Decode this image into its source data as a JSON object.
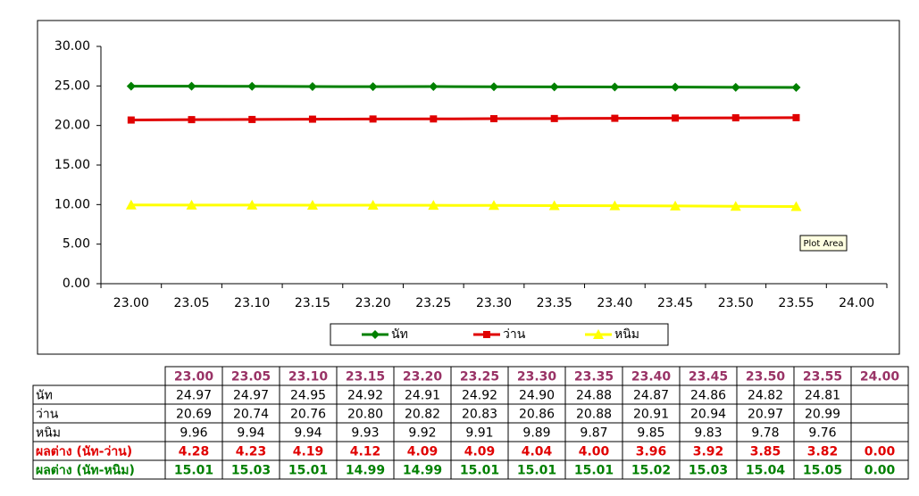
{
  "chart_data": {
    "type": "line",
    "categories": [
      "23.00",
      "23.05",
      "23.10",
      "23.15",
      "23.20",
      "23.25",
      "23.30",
      "23.35",
      "23.40",
      "23.45",
      "23.50",
      "23.55",
      "24.00"
    ],
    "series": [
      {
        "name": "นัท",
        "color": "#008000",
        "marker": "diamond",
        "values": [
          24.97,
          24.97,
          24.95,
          24.92,
          24.91,
          24.92,
          24.9,
          24.88,
          24.87,
          24.86,
          24.82,
          24.81,
          null
        ],
        "value_labels": [
          "24.97",
          "24.97",
          "24.95",
          "24.92",
          "24.91",
          "24.92",
          "24.90",
          "24.88",
          "24.87",
          "24.86",
          "24.82",
          "24.81",
          null
        ]
      },
      {
        "name": "ว่าน",
        "color": "#e00000",
        "marker": "square",
        "values": [
          20.69,
          20.74,
          20.76,
          20.8,
          20.82,
          20.83,
          20.86,
          20.88,
          20.91,
          20.94,
          20.97,
          20.99,
          null
        ],
        "value_labels": [
          "20.69",
          "20.74",
          "20.76",
          "20.80",
          "20.82",
          "20.83",
          "20.86",
          "20.88",
          "20.91",
          "20.94",
          "20.97",
          "20.99",
          null
        ]
      },
      {
        "name": "หนิม",
        "color": "#ffff00",
        "marker": "triangle",
        "values": [
          9.96,
          9.94,
          9.94,
          9.93,
          9.92,
          9.91,
          9.89,
          9.87,
          9.85,
          9.83,
          9.78,
          9.76,
          null
        ],
        "value_labels": [
          "9.96",
          "9.94",
          "9.94",
          "9.93",
          "9.92",
          "9.91",
          "9.89",
          "9.87",
          "9.85",
          "9.83",
          "9.78",
          "9.76",
          null
        ]
      }
    ],
    "ylim": [
      0,
      30
    ],
    "yticks": [
      {
        "value": 0,
        "label": "0.00"
      },
      {
        "value": 5,
        "label": "5.00"
      },
      {
        "value": 10,
        "label": "10.00"
      },
      {
        "value": 15,
        "label": "15.00"
      },
      {
        "value": 20,
        "label": "20.00"
      },
      {
        "value": 25,
        "label": "25.00"
      },
      {
        "value": 30,
        "label": "30.00"
      }
    ],
    "grid": false,
    "legend": "bottom",
    "tooltip": "Plot Area"
  },
  "table": {
    "rows": [
      {
        "label": "ผลต่าง (นัท-ว่าน)",
        "color": "#e00000",
        "cells": [
          "4.28",
          "4.23",
          "4.19",
          "4.12",
          "4.09",
          "4.09",
          "4.04",
          "4.00",
          "3.96",
          "3.92",
          "3.85",
          "3.82",
          "0.00"
        ]
      },
      {
        "label": "ผลต่าง (นัท-หนิม)",
        "color": "#008000",
        "cells": [
          "15.01",
          "15.03",
          "15.01",
          "14.99",
          "14.99",
          "15.01",
          "15.01",
          "15.01",
          "15.02",
          "15.03",
          "15.04",
          "15.05",
          "0.00"
        ]
      }
    ]
  }
}
